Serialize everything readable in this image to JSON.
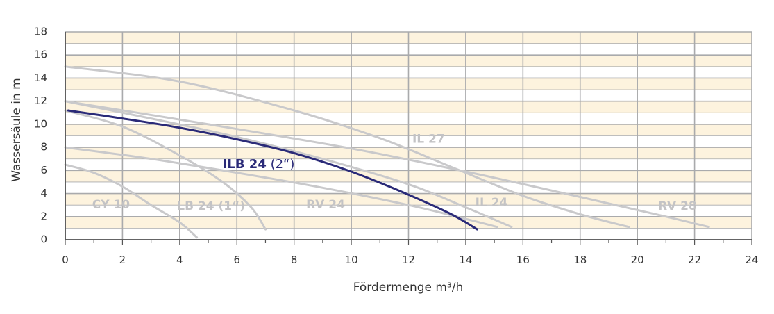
{
  "chart_data": {
    "type": "line",
    "xlabel": "Fördermenge m³/h",
    "ylabel": "Wassersäule in m",
    "xlim": [
      0,
      24
    ],
    "ylim": [
      0,
      18
    ],
    "xticks": [
      0,
      2,
      4,
      6,
      8,
      10,
      12,
      14,
      16,
      18,
      20,
      22,
      24
    ],
    "yticks": [
      0,
      2,
      4,
      6,
      8,
      10,
      12,
      14,
      16,
      18
    ],
    "grid": true,
    "colors": {
      "band_light": "#fdf3de",
      "band_white": "#ffffff",
      "grid": "#a9aaac",
      "curve_gray": "#c9c9cb",
      "label_gray": "#c3c3c5",
      "highlight": "#2a2a78",
      "axis": "#555555"
    },
    "series": [
      {
        "id": "cy10",
        "highlight": false,
        "x": [
          0,
          1,
          2,
          3,
          4,
          4.6
        ],
        "y": [
          6.5,
          5.8,
          4.6,
          3.0,
          1.5,
          0.2
        ]
      },
      {
        "id": "lb24",
        "highlight": false,
        "x": [
          0,
          2,
          4,
          5.5,
          6.5,
          7.0
        ],
        "y": [
          11.2,
          9.8,
          7.3,
          5.0,
          2.8,
          0.9
        ]
      },
      {
        "id": "rv24",
        "highlight": false,
        "x": [
          0,
          3,
          6,
          9,
          12,
          14,
          15.1
        ],
        "y": [
          8.0,
          7.0,
          5.8,
          4.5,
          3.0,
          1.8,
          1.1
        ]
      },
      {
        "id": "il24",
        "highlight": false,
        "x": [
          0,
          3,
          6,
          9,
          12,
          14,
          15.6
        ],
        "y": [
          12.0,
          10.5,
          8.9,
          7.0,
          4.8,
          2.8,
          1.1
        ]
      },
      {
        "id": "il27",
        "highlight": false,
        "x": [
          0,
          4,
          8,
          11,
          13.5,
          16,
          18,
          19.7
        ],
        "y": [
          15.0,
          13.7,
          11.2,
          8.8,
          6.3,
          3.8,
          2.2,
          1.1
        ]
      },
      {
        "id": "rv28",
        "highlight": false,
        "x": [
          0,
          5,
          10,
          14,
          18,
          21,
          22.5
        ],
        "y": [
          12.0,
          10.0,
          7.9,
          5.9,
          3.7,
          2.0,
          1.1
        ]
      },
      {
        "id": "ilb24",
        "highlight": true,
        "x": [
          0.1,
          2,
          4,
          6,
          8,
          10,
          12,
          13.5,
          14.4
        ],
        "y": [
          11.2,
          10.5,
          9.7,
          8.7,
          7.5,
          5.9,
          3.9,
          2.2,
          0.9
        ]
      }
    ],
    "labels": [
      {
        "id": "label-cy10",
        "text": "CY 10",
        "x": 1.6,
        "y": 3.0,
        "main": false
      },
      {
        "id": "label-lb24",
        "text": "LB 24 (1“)",
        "x": 5.1,
        "y": 2.9,
        "main": false
      },
      {
        "id": "label-rv24",
        "text": "RV 24",
        "x": 9.1,
        "y": 3.0,
        "main": false
      },
      {
        "id": "label-il24",
        "text": "IL 24",
        "x": 14.9,
        "y": 3.2,
        "main": false
      },
      {
        "id": "label-il27",
        "text": "IL 27",
        "x": 12.7,
        "y": 8.7,
        "main": false
      },
      {
        "id": "label-rv28",
        "text": "RV 28",
        "x": 21.4,
        "y": 2.9,
        "main": false
      }
    ],
    "main_label": {
      "bold": "ILB 24",
      "rest": " (2“)",
      "x": 5.5,
      "y": 6.5
    }
  }
}
